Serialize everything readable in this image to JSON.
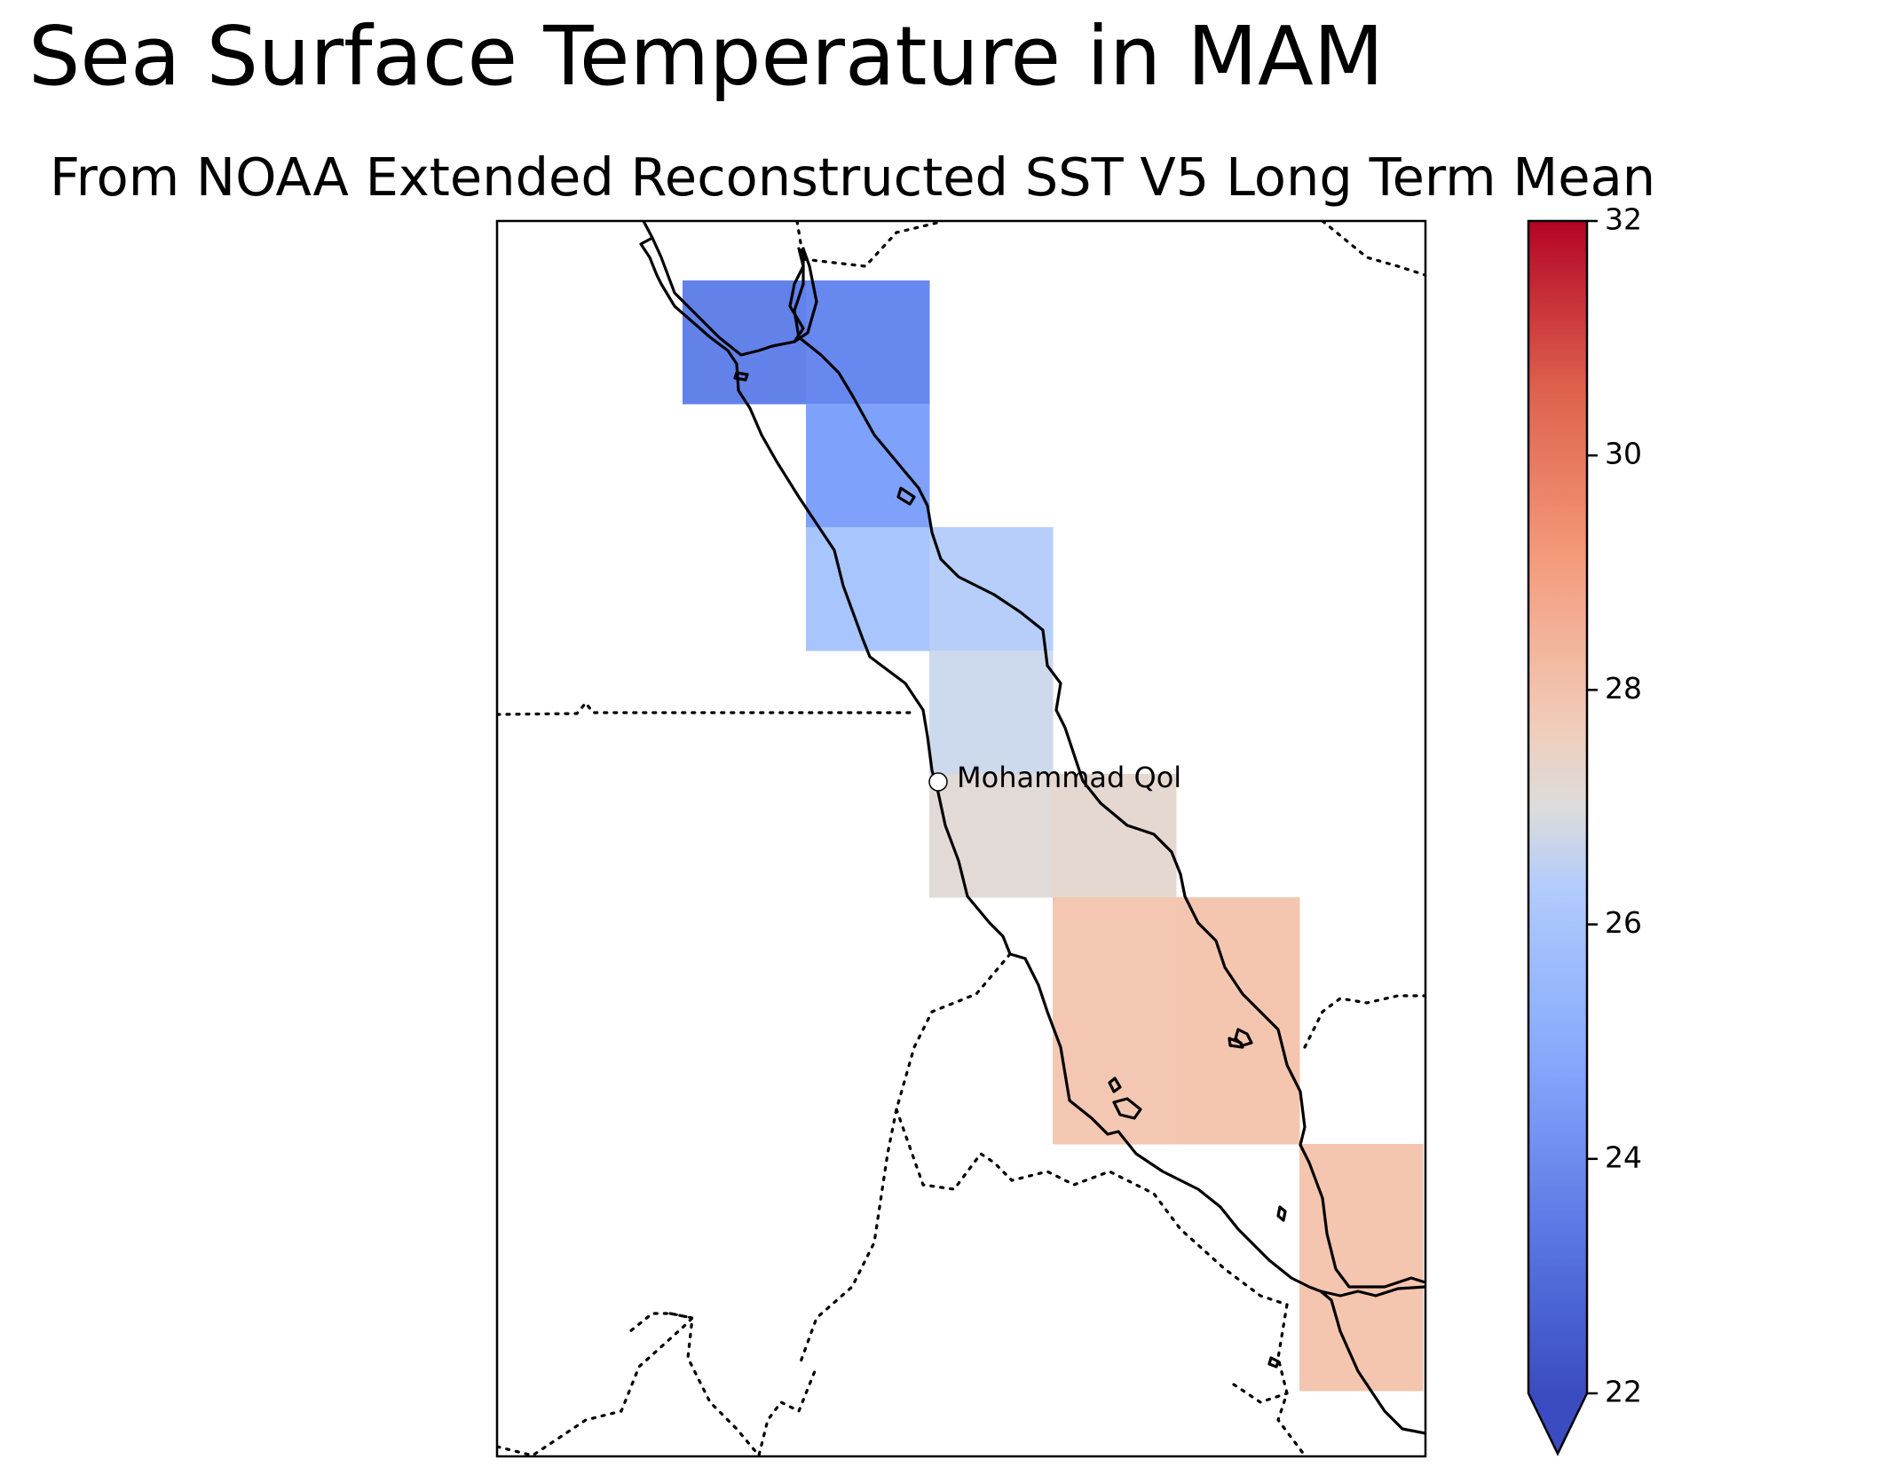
{
  "figure": {
    "title": "Sea Surface Temperature in MAM",
    "subtitle": "From NOAA Extended Reconstructed SST V5 Long Term Mean"
  },
  "colorbar": {
    "min": 22,
    "max": 32,
    "ticks": [
      "22",
      "24",
      "26",
      "28",
      "30",
      "32"
    ],
    "extend": "min",
    "colormap": "coolwarm",
    "colors": [
      "#3b4cc0",
      "#6788ee",
      "#9abbff",
      "#c9d7f0",
      "#edd1c2",
      "#f7a889",
      "#e26952",
      "#b40426"
    ]
  },
  "map": {
    "place_label": "Mohammad Qol",
    "place_marker_color": "#ffffff",
    "coastline_color": "#000000",
    "border_style": "dotted",
    "cells": [
      {
        "row": 0,
        "col": 1,
        "value": 23.3,
        "color": "#6282ea"
      },
      {
        "row": 0,
        "col": 2,
        "value": 23.4,
        "color": "#6788ee"
      },
      {
        "row": 1,
        "col": 2,
        "value": 24.4,
        "color": "#7ea2fb"
      },
      {
        "row": 2,
        "col": 2,
        "value": 25.6,
        "color": "#a8c5fe"
      },
      {
        "row": 2,
        "col": 3,
        "value": 25.7,
        "color": "#b6cef9"
      },
      {
        "row": 3,
        "col": 3,
        "value": 26.8,
        "color": "#cdd9ec"
      },
      {
        "row": 4,
        "col": 3,
        "value": 27.6,
        "color": "#e1dad6"
      },
      {
        "row": 4,
        "col": 4,
        "value": 27.8,
        "color": "#e5d8d1"
      },
      {
        "row": 5,
        "col": 4,
        "value": 28.3,
        "color": "#f3c7b1"
      },
      {
        "row": 5,
        "col": 5,
        "value": 28.3,
        "color": "#f4c6af"
      },
      {
        "row": 6,
        "col": 4,
        "value": 28.3,
        "color": "#f3c7b1"
      },
      {
        "row": 6,
        "col": 5,
        "value": 28.3,
        "color": "#f4c6af"
      },
      {
        "row": 7,
        "col": 6,
        "value": 28.3,
        "color": "#f4c6af"
      },
      {
        "row": 8,
        "col": 6,
        "value": 28.3,
        "color": "#f4c6af"
      }
    ]
  }
}
